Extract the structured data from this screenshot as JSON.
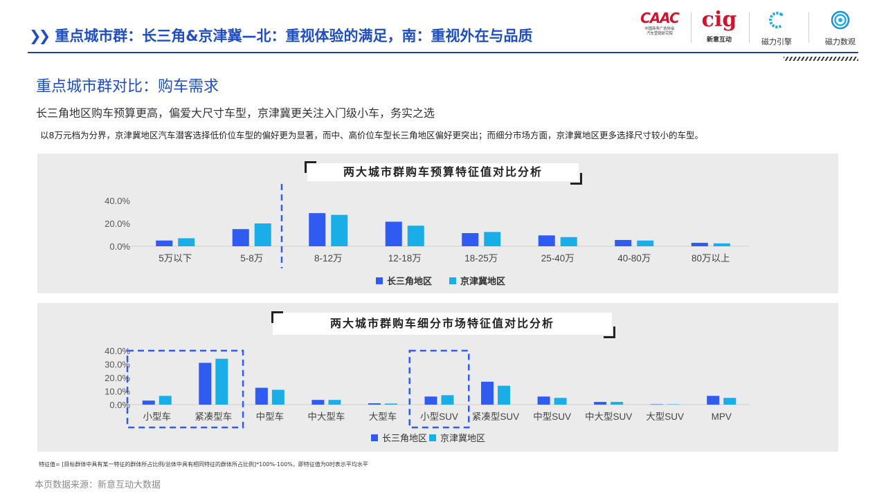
{
  "header": {
    "title": "重点城市群：长三角&京津冀—北：重视体验的满足，南：重视外在与品质",
    "chevron_icon": "double-chevron-right-icon",
    "accent_color": "#1f4ec2"
  },
  "logos": {
    "caac": {
      "mark": "CAAC",
      "text_line1": "中国商务广告协会",
      "text_line2": "汽车营销研究院"
    },
    "cig": {
      "mark": "cig",
      "caption": "新意互动"
    },
    "cili_yinqing": {
      "icon": "c-arc-logo-icon",
      "caption": "磁力引擎"
    },
    "cili_shuguan": {
      "icon": "concentric-circle-logo-icon",
      "caption": "磁力数观"
    }
  },
  "section": {
    "title": "重点城市群对比：购车需求",
    "lead": "长三角地区购车预算更高，偏爱大尺寸车型，京津冀更关注入门级小车，务实之选",
    "description": "以8万元档为分界，京津冀地区汽车潜客选择低价位车型的偏好更为显著，而中、高价位车型长三角地区偏好更突出；而细分市场方面，京津冀地区更多选择尺寸较小的车型。"
  },
  "colors": {
    "series_a": "#2f5bf0",
    "series_b": "#1aaee8",
    "highlight": "#2f5bf0"
  },
  "chart_data": [
    {
      "type": "bar",
      "title": "两大城市群购车预算特征值对比分析",
      "categories": [
        "5万以下",
        "5-8万",
        "8-12万",
        "12-18万",
        "18-25万",
        "25-40万",
        "40-80万",
        "80万以上"
      ],
      "series": [
        {
          "name": "长三角地区",
          "values": [
            5.0,
            15.0,
            29.0,
            21.5,
            11.5,
            9.5,
            5.5,
            3.0
          ]
        },
        {
          "name": "京津冀地区",
          "values": [
            7.0,
            20.0,
            27.5,
            18.0,
            12.5,
            8.0,
            5.0,
            2.5
          ]
        }
      ],
      "yticks": [
        "0.0%",
        "20.0%",
        "40.0%"
      ],
      "ylim": [
        0,
        40
      ],
      "legend_position": "bottom",
      "annotation": "dashed divider between 5-8万 and 8-12万"
    },
    {
      "type": "bar",
      "title": "两大城市群购车细分市场特征值对比分析",
      "categories": [
        "小型车",
        "紧凑型车",
        "中型车",
        "中大型车",
        "大型车",
        "小型SUV",
        "紧凑型SUV",
        "中型SUV",
        "中大型SUV",
        "大型SUV",
        "MPV"
      ],
      "series": [
        {
          "name": "长三角地区",
          "values": [
            3.0,
            31.0,
            12.5,
            3.5,
            1.0,
            6.0,
            17.0,
            6.0,
            2.0,
            0.3,
            6.5
          ]
        },
        {
          "name": "京津冀地区",
          "values": [
            6.5,
            34.0,
            11.0,
            3.5,
            0.8,
            7.0,
            14.0,
            5.0,
            2.0,
            0.3,
            5.0
          ]
        }
      ],
      "yticks": [
        "0.0%",
        "10.0%",
        "20.0%",
        "30.0%",
        "40.0%"
      ],
      "ylim": [
        0,
        40
      ],
      "legend_position": "bottom",
      "highlighted_categories": [
        "小型车",
        "紧凑型车",
        "小型SUV"
      ]
    }
  ],
  "footnote": "特征值= [目标群体中具有某一特征的群体所占比例/总体中具有相同特征的群体所占比例]*100%-100%，即特征值为0时表示平均水平",
  "source": "本页数据来源：新意互动大数据"
}
